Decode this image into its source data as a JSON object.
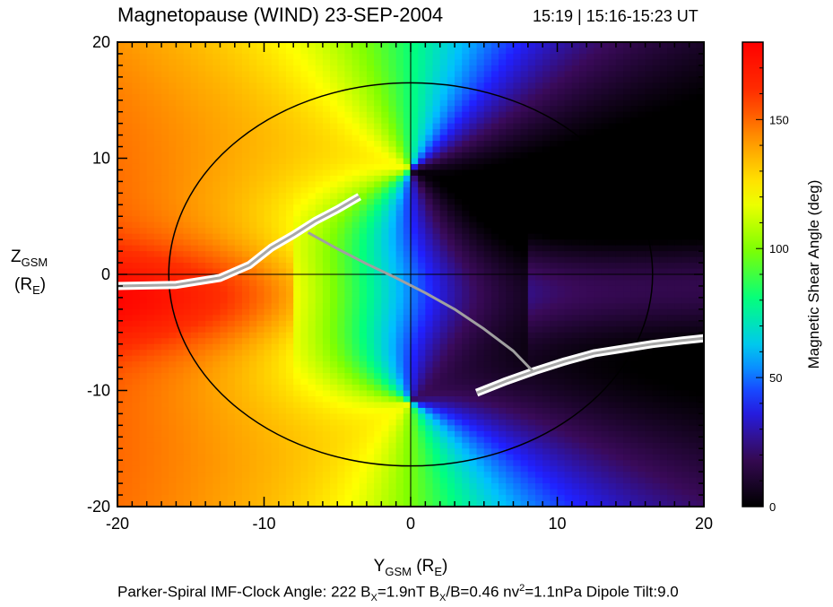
{
  "title": "Magnetopause (WIND) 23-SEP-2004",
  "time_label": "15:19 | 15:16-15:23 UT",
  "footer": {
    "part1": "Parker-Spiral IMF-Clock Angle: 222  B",
    "sub1": "X",
    "part2": "=1.9nT   B",
    "sub2": "X",
    "part3": "/B=0.46  nv",
    "sup1": "2",
    "part4": "=1.1nPa  Dipole Tilt:9.0"
  },
  "colorbar": {
    "label": "Magnetic Shear Angle (deg)",
    "range": [
      0,
      180
    ],
    "ticks": [
      0,
      50,
      100,
      150
    ],
    "tick_labels": [
      "0",
      "50",
      "100",
      "150"
    ],
    "colors": [
      "#000000",
      "#3a0a5a",
      "#2020ff",
      "#00c0ff",
      "#00ff80",
      "#80ff00",
      "#ffff00",
      "#ffa000",
      "#ff3000",
      "#ff0000"
    ]
  },
  "chart_data": {
    "type": "heatmap",
    "title": "Magnetopause (WIND) 23-SEP-2004",
    "xlabel": "Y_GSM (R_E)",
    "ylabel": "Z_GSM (R_E)",
    "xlim": [
      -20,
      20
    ],
    "ylim": [
      -20,
      20
    ],
    "x_ticks": [
      -20,
      -10,
      0,
      10,
      20
    ],
    "x_tick_labels": [
      "-20",
      "-10",
      "0",
      "10",
      "20"
    ],
    "y_ticks": [
      -20,
      -10,
      0,
      10,
      20
    ],
    "y_tick_labels": [
      "-20",
      "-10",
      "0",
      "10",
      "20"
    ],
    "value": "Magnetic Shear Angle (deg)",
    "value_range": [
      0,
      180
    ],
    "magnetopause_boundary": {
      "center": [
        0,
        0
      ],
      "radius_y": 16.5,
      "radius_z": 16.5
    },
    "null_points": [
      [
        0,
        9
      ],
      [
        0,
        -11
      ]
    ],
    "max_shear_line_north": [
      [
        -20,
        -1.0
      ],
      [
        -16,
        -0.9
      ],
      [
        -13,
        -0.3
      ],
      [
        -11,
        0.8
      ],
      [
        -9.5,
        2.3
      ],
      [
        -8,
        3.4
      ],
      [
        -6.5,
        4.6
      ],
      [
        -5,
        5.6
      ],
      [
        -3.5,
        6.7
      ]
    ],
    "max_shear_line_south": [
      [
        4.5,
        -10.2
      ],
      [
        6.5,
        -9.2
      ],
      [
        8.5,
        -8.3
      ],
      [
        10.5,
        -7.5
      ],
      [
        12.5,
        -6.8
      ],
      [
        14.5,
        -6.4
      ],
      [
        16.5,
        -6.0
      ],
      [
        18.5,
        -5.7
      ],
      [
        20,
        -5.5
      ]
    ],
    "spacecraft_track": [
      [
        -7.0,
        3.6
      ],
      [
        -5,
        2.2
      ],
      [
        -3,
        0.9
      ],
      [
        -1,
        -0.3
      ],
      [
        1,
        -1.6
      ],
      [
        3,
        -3.0
      ],
      [
        5,
        -4.7
      ],
      [
        7,
        -6.6
      ],
      [
        8.3,
        -8.3
      ]
    ]
  }
}
